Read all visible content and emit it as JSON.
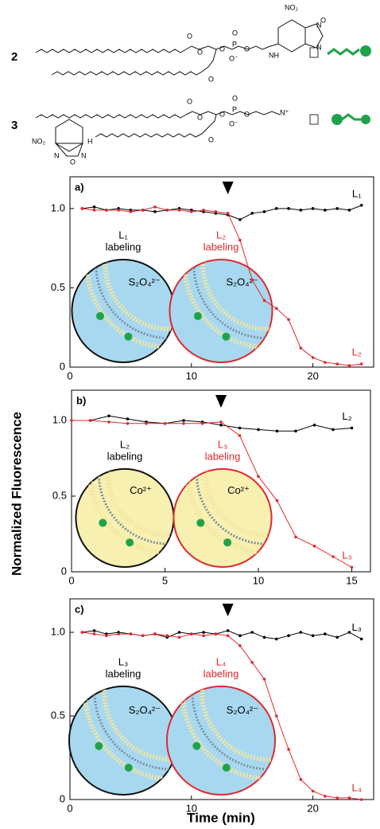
{
  "compounds": [
    {
      "number": "2",
      "atoms": [
        "NO₂",
        "O",
        "N",
        "N",
        "NH",
        "O",
        "O",
        "P",
        "O⁻",
        "O",
        "O",
        "O",
        "O"
      ]
    },
    {
      "number": "3",
      "atoms": [
        "N⁺",
        "O",
        "O",
        "P",
        "O⁻",
        "O",
        "O",
        "O",
        "O",
        "NO₂",
        "N",
        "O",
        "N",
        "H"
      ]
    }
  ],
  "figure": {
    "ylabel": "Normalized Fluorescence",
    "xlabel": "Time (min)"
  },
  "chart_data": [
    {
      "type": "line",
      "panel": "a)",
      "arrow_x": 13,
      "x": [
        1,
        2,
        3,
        4,
        5,
        6,
        7,
        8,
        9,
        10,
        11,
        12,
        13,
        14,
        15,
        16,
        17,
        18,
        19,
        20,
        21,
        22,
        23,
        24
      ],
      "series": [
        {
          "name": "L₁",
          "color": "#000000",
          "values": [
            1.0,
            1.01,
            0.99,
            1.0,
            0.99,
            0.99,
            0.98,
            0.99,
            1.0,
            0.99,
            0.98,
            0.97,
            0.96,
            0.93,
            0.97,
            0.98,
            1.0,
            1.0,
            0.99,
            1.0,
            0.99,
            1.0,
            0.99,
            1.02
          ]
        },
        {
          "name": "L₂",
          "color": "#e0282e",
          "values": [
            1.0,
            0.99,
            0.99,
            0.99,
            0.98,
            0.99,
            1.01,
            0.99,
            0.99,
            0.98,
            0.99,
            0.98,
            0.97,
            0.8,
            0.55,
            0.42,
            0.37,
            0.3,
            0.12,
            0.06,
            0.03,
            0.02,
            0.01,
            0.02
          ]
        }
      ],
      "insets": [
        {
          "label": [
            "L₁",
            "labeling"
          ],
          "ion": "S₂O₄²⁻",
          "fill": "#a8d8f0",
          "border": "#111111",
          "label_color": "#000000"
        },
        {
          "label": [
            "L₂",
            "labeling"
          ],
          "ion": "S₂O₄²⁻",
          "fill": "#a8d8f0",
          "border": "#e0282e",
          "label_color": "#e0282e"
        }
      ],
      "xlim": [
        0,
        25
      ],
      "xticks": [
        0,
        10,
        20
      ],
      "ylim": [
        0,
        1.2
      ],
      "yticks": [
        0,
        0.5,
        {
          "value": 1,
          "label": "1.0"
        }
      ]
    },
    {
      "type": "line",
      "panel": "b)",
      "arrow_x": 8,
      "x": [
        0,
        1,
        2,
        3,
        4,
        5,
        6,
        7,
        8,
        9,
        10,
        11,
        12,
        13,
        14,
        15
      ],
      "series": [
        {
          "name": "L₂",
          "color": "#000000",
          "values": [
            null,
            1.0,
            1.03,
            1.01,
            0.99,
            0.98,
            1.0,
            0.99,
            0.97,
            0.95,
            0.94,
            0.93,
            0.93,
            0.97,
            0.94,
            0.95
          ]
        },
        {
          "name": "L₃",
          "color": "#e0282e",
          "values": [
            1.0,
            1.0,
            0.99,
            0.98,
            0.98,
            0.98,
            0.98,
            0.98,
            0.99,
            0.9,
            0.63,
            0.47,
            0.23,
            0.17,
            0.1,
            0.03
          ]
        }
      ],
      "insets": [
        {
          "label": [
            "L₂",
            "labeling"
          ],
          "ion": "Co²⁺",
          "fill": "#f8f0b0",
          "border": "#111111",
          "label_color": "#000000"
        },
        {
          "label": [
            "L₃",
            "labeling"
          ],
          "ion": "Co²⁺",
          "fill": "#f8f0b0",
          "border": "#e0282e",
          "label_color": "#e0282e"
        }
      ],
      "xlim": [
        0,
        16
      ],
      "xticks": [
        0,
        5,
        10,
        15
      ],
      "ylim": [
        0,
        1.2
      ],
      "yticks": [
        0,
        0.5,
        {
          "value": 1,
          "label": "1.0"
        }
      ]
    },
    {
      "type": "line",
      "panel": "c)",
      "arrow_x": 13,
      "x": [
        1,
        2,
        3,
        4,
        5,
        6,
        7,
        8,
        9,
        10,
        11,
        12,
        13,
        14,
        15,
        16,
        17,
        18,
        19,
        20,
        21,
        22,
        23,
        24
      ],
      "series": [
        {
          "name": "L₃",
          "color": "#000000",
          "values": [
            1.0,
            1.01,
            0.99,
            1.0,
            0.99,
            0.98,
            0.99,
            0.97,
            1.0,
            0.99,
            1.0,
            0.99,
            1.01,
            0.98,
            1.0,
            0.97,
            0.96,
            0.98,
            1.0,
            0.98,
            0.99,
            0.97,
            1.0,
            0.96
          ]
        },
        {
          "name": "L₄",
          "color": "#e0282e",
          "values": [
            1.0,
            0.99,
            0.98,
            0.99,
            0.99,
            0.98,
            0.99,
            0.98,
            0.97,
            0.99,
            0.98,
            0.99,
            0.98,
            0.92,
            0.82,
            0.72,
            0.5,
            0.3,
            0.12,
            0.05,
            0.02,
            0.01,
            0.01,
            0.0
          ]
        }
      ],
      "insets": [
        {
          "label": [
            "L₃",
            "labeling"
          ],
          "ion": "S₂O₄²⁻",
          "fill": "#a8d8f0",
          "border": "#111111",
          "label_color": "#000000"
        },
        {
          "label": [
            "L₄",
            "labeling"
          ],
          "ion": "S₂O₄²⁻",
          "fill": "#a8d8f0",
          "border": "#e0282e",
          "label_color": "#e0282e"
        }
      ],
      "xlim": [
        0,
        25
      ],
      "xticks": [
        0,
        10,
        20
      ],
      "ylim": [
        0,
        1.2
      ],
      "yticks": [
        0,
        0.5,
        {
          "value": 1,
          "label": "1.0"
        }
      ]
    }
  ]
}
